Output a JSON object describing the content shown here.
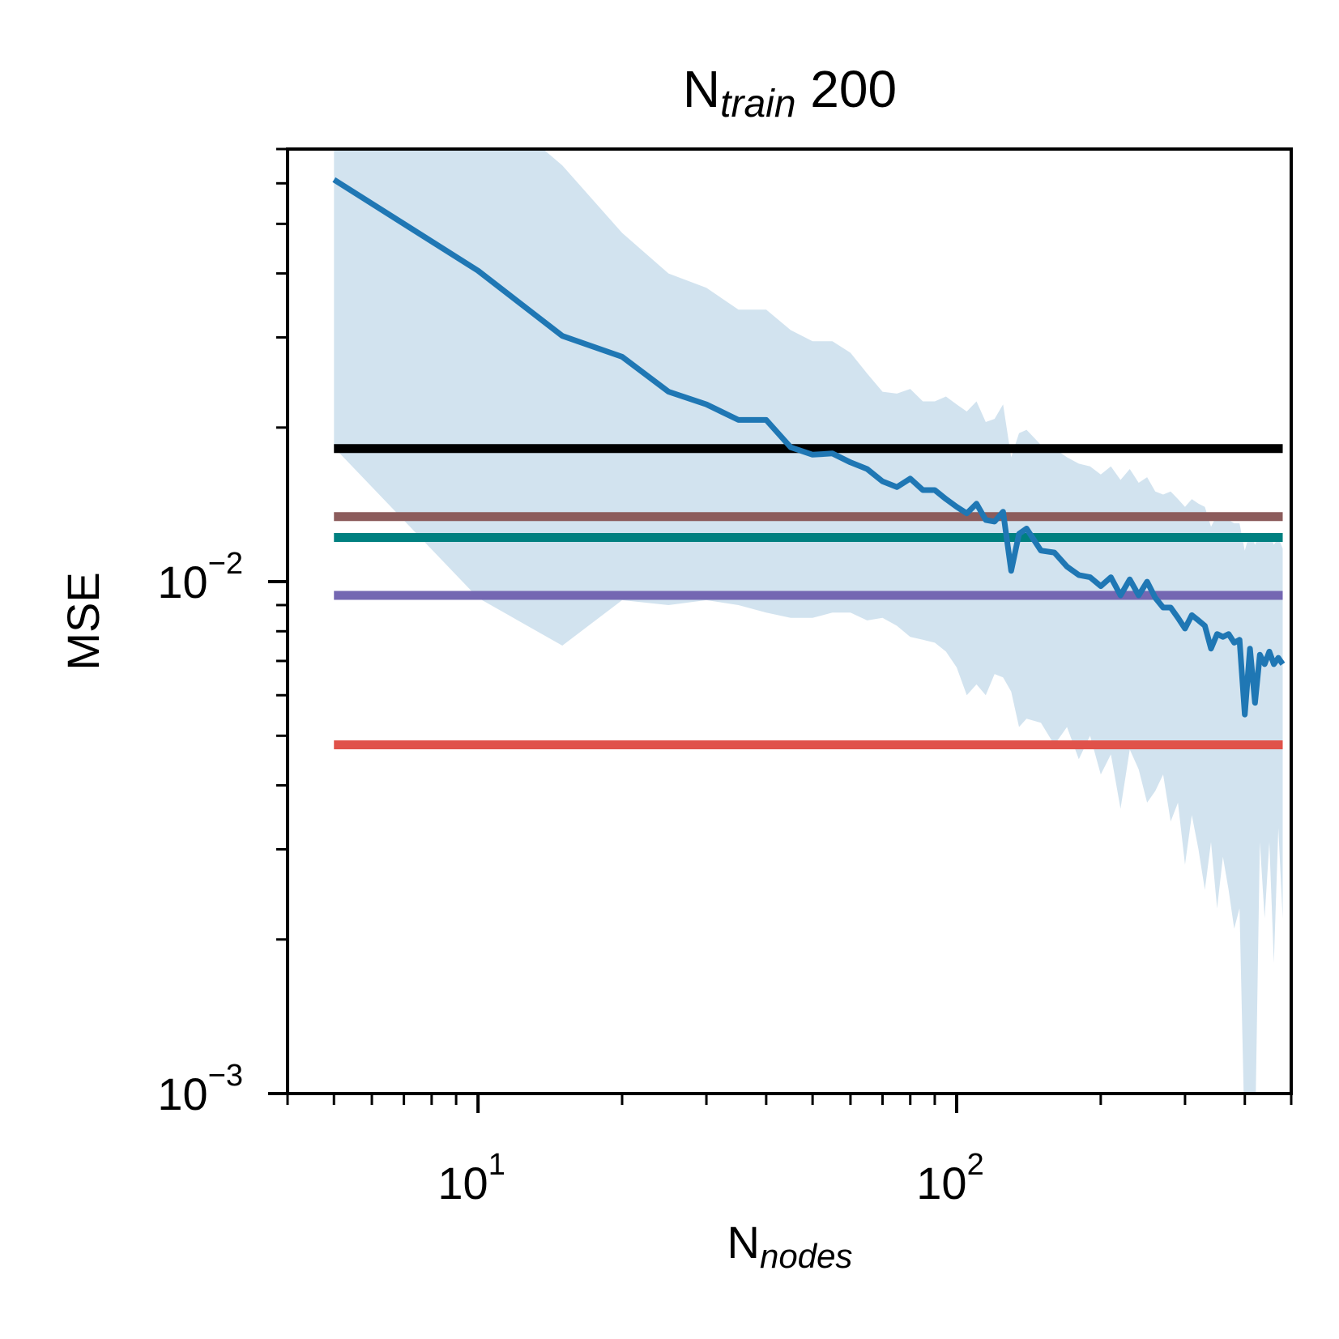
{
  "chart_data": {
    "type": "line",
    "title": {
      "main": "N",
      "sub": "train",
      "rest": " 200"
    },
    "xlabel": {
      "main": "N",
      "sub": "nodes"
    },
    "ylabel": "MSE",
    "x_scale": "log",
    "y_scale": "log",
    "xlim": [
      4,
      500
    ],
    "ylim": [
      0.001,
      0.07
    ],
    "x_ticks": [
      {
        "value": 10,
        "base": "10",
        "exp": "1"
      },
      {
        "value": 100,
        "base": "10",
        "exp": "2"
      }
    ],
    "y_ticks": [
      {
        "value": 0.01,
        "base": "10",
        "exp": "−2"
      },
      {
        "value": 0.001,
        "base": "10",
        "exp": "−3"
      }
    ],
    "grid": false,
    "series": [
      {
        "color": "#1f77b4",
        "band_color": "#d2e3ef",
        "x": [
          5,
          10,
          15,
          20,
          25,
          30,
          35,
          40,
          45,
          50,
          55,
          60,
          65,
          70,
          75,
          80,
          85,
          90,
          95,
          100,
          105,
          110,
          115,
          120,
          125,
          130,
          135,
          140,
          150,
          160,
          170,
          180,
          190,
          200,
          210,
          220,
          230,
          240,
          250,
          260,
          270,
          280,
          290,
          300,
          310,
          320,
          330,
          340,
          350,
          360,
          370,
          380,
          390,
          400,
          410,
          420,
          430,
          440,
          450,
          460,
          470,
          480
        ],
        "y": [
          0.061,
          0.0405,
          0.0302,
          0.0275,
          0.0235,
          0.0222,
          0.0207,
          0.0207,
          0.0183,
          0.0177,
          0.0178,
          0.0171,
          0.0166,
          0.0157,
          0.0153,
          0.0159,
          0.0151,
          0.0151,
          0.0145,
          0.014,
          0.0136,
          0.0142,
          0.0132,
          0.0131,
          0.0137,
          0.0105,
          0.0124,
          0.0127,
          0.0115,
          0.0114,
          0.0107,
          0.0103,
          0.0102,
          0.0098,
          0.0102,
          0.0094,
          0.0101,
          0.0094,
          0.01,
          0.0093,
          0.0089,
          0.0089,
          0.0085,
          0.0081,
          0.0086,
          0.0084,
          0.0082,
          0.0074,
          0.0079,
          0.0078,
          0.0079,
          0.0076,
          0.0077,
          0.0055,
          0.0074,
          0.0058,
          0.0072,
          0.0069,
          0.0073,
          0.0069,
          0.0071,
          0.0069
        ],
        "upper": [
          0.09,
          0.09,
          0.065,
          0.048,
          0.04,
          0.0375,
          0.034,
          0.034,
          0.031,
          0.0295,
          0.0295,
          0.028,
          0.0255,
          0.0235,
          0.0233,
          0.0238,
          0.0225,
          0.0225,
          0.023,
          0.0222,
          0.0215,
          0.0225,
          0.0205,
          0.0208,
          0.0222,
          0.0175,
          0.0195,
          0.0198,
          0.0185,
          0.0182,
          0.0175,
          0.017,
          0.0168,
          0.0162,
          0.0168,
          0.0158,
          0.0166,
          0.0156,
          0.016,
          0.015,
          0.0148,
          0.015,
          0.0145,
          0.014,
          0.0145,
          0.0142,
          0.014,
          0.0128,
          0.0135,
          0.0132,
          0.0132,
          0.013,
          0.013,
          0.0115,
          0.0125,
          0.0118,
          0.0124,
          0.012,
          0.0125,
          0.0118,
          0.0122,
          0.0116
        ],
        "lower": [
          0.0183,
          0.0093,
          0.0075,
          0.0092,
          0.009,
          0.0092,
          0.009,
          0.0087,
          0.0085,
          0.0085,
          0.0087,
          0.0087,
          0.0084,
          0.0085,
          0.0082,
          0.0078,
          0.0077,
          0.0076,
          0.0073,
          0.0068,
          0.006,
          0.0063,
          0.006,
          0.0066,
          0.0065,
          0.0061,
          0.0052,
          0.0054,
          0.0053,
          0.0048,
          0.0052,
          0.0045,
          0.005,
          0.0042,
          0.0046,
          0.0036,
          0.0047,
          0.0043,
          0.0037,
          0.0039,
          0.0042,
          0.0034,
          0.0037,
          0.0028,
          0.0035,
          0.003,
          0.0025,
          0.0031,
          0.0023,
          0.0029,
          0.0025,
          0.0021,
          0.0023,
          0.0008,
          0.0008,
          0.0008,
          0.0031,
          0.0022,
          0.0031,
          0.0018,
          0.0033,
          0.0022
        ]
      }
    ],
    "reference_lines": [
      {
        "y": 0.0182,
        "color": "#000000"
      },
      {
        "y": 0.0134,
        "color": "#8c5c5c"
      },
      {
        "y": 0.0122,
        "color": "#008080"
      },
      {
        "y": 0.0094,
        "color": "#7467b2"
      },
      {
        "y": 0.0048,
        "color": "#e0524a"
      }
    ]
  }
}
